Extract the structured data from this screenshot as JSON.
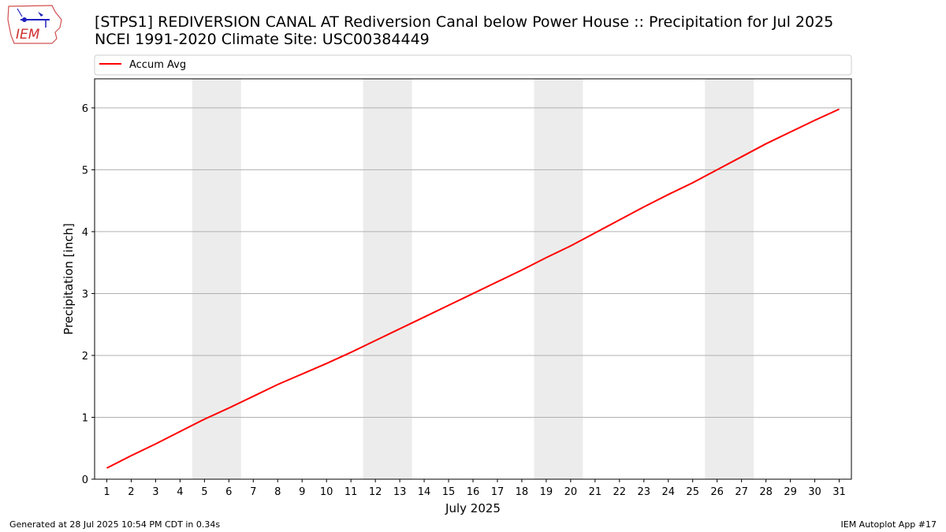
{
  "header": {
    "title_line1": "[STPS1] REDIVERSION CANAL  AT Rediversion Canal below Power House :: Precipitation for Jul 2025",
    "title_line2": "NCEI 1991-2020 Climate Site: USC00384449"
  },
  "logo": {
    "text": "IEM",
    "icon": "iem-logo-icon"
  },
  "footer": {
    "left": "Generated at 28 Jul 2025 10:54 PM CDT in 0.34s",
    "right": "IEM Autoplot App #17"
  },
  "colors": {
    "line": "#ff0000",
    "weekend_band": "#ececec",
    "grid": "#b0b0b0"
  },
  "chart_data": {
    "type": "line",
    "xlabel": "July 2025",
    "ylabel": "Precipitation [inch]",
    "xlim": [
      0.5,
      31.5
    ],
    "ylim": [
      0,
      6.47
    ],
    "xticks": [
      1,
      2,
      3,
      4,
      5,
      6,
      7,
      8,
      9,
      10,
      11,
      12,
      13,
      14,
      15,
      16,
      17,
      18,
      19,
      20,
      21,
      22,
      23,
      24,
      25,
      26,
      27,
      28,
      29,
      30,
      31
    ],
    "yticks": [
      0,
      1,
      2,
      3,
      4,
      5,
      6
    ],
    "grid": "horizontal",
    "legend_position": "top",
    "shaded_weekends": [
      [
        5,
        6
      ],
      [
        12,
        13
      ],
      [
        19,
        20
      ],
      [
        26,
        27
      ]
    ],
    "series": [
      {
        "name": "Accum Avg",
        "color": "#ff0000",
        "x": [
          1,
          2,
          3,
          4,
          5,
          6,
          7,
          8,
          9,
          10,
          11,
          12,
          13,
          14,
          15,
          16,
          17,
          18,
          19,
          20,
          21,
          22,
          23,
          24,
          25,
          26,
          27,
          28,
          29,
          30,
          31
        ],
        "y": [
          0.18,
          0.38,
          0.57,
          0.77,
          0.97,
          1.15,
          1.34,
          1.53,
          1.7,
          1.87,
          2.05,
          2.24,
          2.43,
          2.62,
          2.81,
          3.0,
          3.19,
          3.38,
          3.58,
          3.77,
          3.98,
          4.19,
          4.4,
          4.6,
          4.79,
          5.0,
          5.21,
          5.42,
          5.61,
          5.8,
          5.98
        ]
      }
    ]
  }
}
